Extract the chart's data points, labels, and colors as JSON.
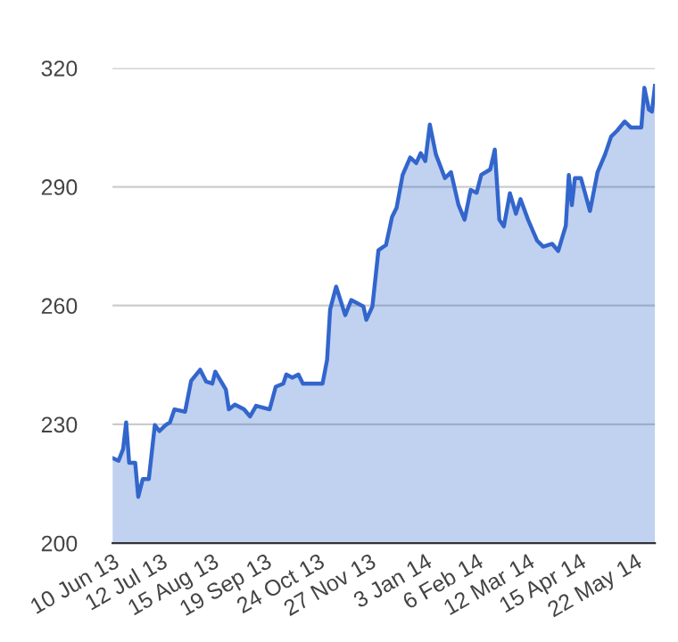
{
  "chart_data": {
    "type": "area",
    "xlim": [
      "2013-06-10",
      "2014-06-04"
    ],
    "ylim": [
      200,
      320
    ],
    "yticks": [
      200,
      230,
      260,
      290,
      320
    ],
    "xticks": [
      {
        "value": "2013-06-10",
        "label": "10 Jun 13"
      },
      {
        "value": "2013-07-12",
        "label": "12 Jul 13"
      },
      {
        "value": "2013-08-15",
        "label": "15 Aug 13"
      },
      {
        "value": "2013-09-19",
        "label": "19 Sep 13"
      },
      {
        "value": "2013-10-24",
        "label": "24 Oct 13"
      },
      {
        "value": "2013-11-27",
        "label": "27 Nov 13"
      },
      {
        "value": "2014-01-03",
        "label": "3 Jan 14"
      },
      {
        "value": "2014-02-06",
        "label": "6 Feb 14"
      },
      {
        "value": "2014-03-12",
        "label": "12 Mar 14"
      },
      {
        "value": "2014-04-15",
        "label": "15 Apr 14"
      },
      {
        "value": "2014-05-22",
        "label": "22 May 14"
      }
    ],
    "grid": "y",
    "legend": false,
    "series": [
      {
        "color": "#3366cc",
        "x": [
          "2013-06-10",
          "2013-06-14",
          "2013-06-17",
          "2013-06-19",
          "2013-06-21",
          "2013-06-25",
          "2013-06-27",
          "2013-06-30",
          "2013-07-04",
          "2013-07-08",
          "2013-07-11",
          "2013-07-15",
          "2013-07-18",
          "2013-07-21",
          "2013-07-28",
          "2013-08-01",
          "2013-08-07",
          "2013-08-11",
          "2013-08-15",
          "2013-08-17",
          "2013-08-24",
          "2013-08-26",
          "2013-08-30",
          "2013-09-05",
          "2013-09-09",
          "2013-09-13",
          "2013-09-22",
          "2013-09-26",
          "2013-10-01",
          "2013-10-03",
          "2013-10-07",
          "2013-10-11",
          "2013-10-14",
          "2013-10-27",
          "2013-10-30",
          "2013-11-01",
          "2013-11-05",
          "2013-11-11",
          "2013-11-15",
          "2013-11-23",
          "2013-11-25",
          "2013-11-29",
          "2013-12-03",
          "2013-12-08",
          "2013-12-12",
          "2013-12-15",
          "2013-12-19",
          "2013-12-24",
          "2013-12-28",
          "2013-12-31",
          "2014-01-03",
          "2014-01-06",
          "2014-01-10",
          "2014-01-16",
          "2014-01-20",
          "2014-01-25",
          "2014-01-29",
          "2014-02-02",
          "2014-02-06",
          "2014-02-09",
          "2014-02-15",
          "2014-02-18",
          "2014-02-21",
          "2014-02-24",
          "2014-02-28",
          "2014-03-04",
          "2014-03-07",
          "2014-03-12",
          "2014-03-18",
          "2014-03-22",
          "2014-03-28",
          "2014-04-01",
          "2014-04-06",
          "2014-04-08",
          "2014-04-10",
          "2014-04-12",
          "2014-04-16",
          "2014-04-22",
          "2014-04-27",
          "2014-05-02",
          "2014-05-06",
          "2014-05-10",
          "2014-05-15",
          "2014-05-19",
          "2014-05-26",
          "2014-05-28",
          "2014-05-31",
          "2014-06-02",
          "2014-06-04"
        ],
        "values": [
          221.5,
          220.8,
          223.8,
          230.5,
          220.3,
          220.3,
          211.7,
          216.2,
          216.2,
          229.8,
          228.3,
          229.8,
          230.5,
          233.8,
          233.2,
          241,
          243.8,
          240.8,
          240.3,
          243.3,
          238.8,
          233.8,
          235,
          233.8,
          232,
          234.7,
          233.8,
          239.5,
          240.3,
          242.6,
          241.8,
          242.6,
          240.3,
          240.3,
          246.3,
          259,
          264.8,
          257.6,
          261.4,
          259.8,
          256.4,
          259.8,
          274,
          275.3,
          282.4,
          284.7,
          293,
          297.4,
          296,
          298.5,
          296.5,
          305.7,
          298.2,
          292.2,
          293.7,
          285.4,
          281.7,
          289.2,
          288.5,
          293,
          294.4,
          299.4,
          281.7,
          280,
          288.4,
          283.2,
          286.9,
          281.7,
          276.4,
          274.9,
          275.6,
          273.8,
          280.2,
          293,
          285.4,
          292.2,
          292.2,
          283.9,
          293.7,
          298.2,
          302.7,
          304.2,
          306.5,
          305,
          305,
          315,
          309.5,
          309,
          315.5
        ]
      }
    ]
  }
}
